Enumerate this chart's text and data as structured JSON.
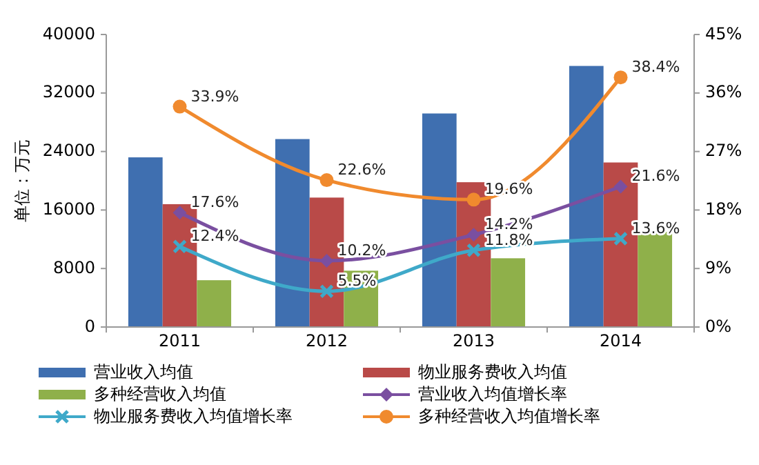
{
  "chart_data": {
    "type": "bar",
    "ylabel": "单位：万元",
    "categories": [
      "2011",
      "2012",
      "2013",
      "2014"
    ],
    "ylim": [
      0,
      40000
    ],
    "yticks": [
      0,
      8000,
      16000,
      24000,
      32000,
      40000
    ],
    "y2lim": [
      0,
      45
    ],
    "y2ticks": [
      {
        "value": 0,
        "label": "0%"
      },
      {
        "value": 9,
        "label": "9%"
      },
      {
        "value": 18,
        "label": "18%"
      },
      {
        "value": 27,
        "label": "27%"
      },
      {
        "value": 36,
        "label": "36%"
      },
      {
        "value": 45,
        "label": "45%"
      }
    ],
    "legend": "bottom",
    "grid": false,
    "series": [
      {
        "name": "营业收入均值",
        "color": "#3f6fb0",
        "values": [
          23200,
          25700,
          29200,
          35700
        ]
      },
      {
        "name": "物业服务费收入均值",
        "color": "#b94a48",
        "values": [
          16800,
          17700,
          19800,
          22500
        ]
      },
      {
        "name": "多种经营收入均值",
        "color": "#8fb04a",
        "values": [
          6400,
          7700,
          9400,
          13000
        ]
      },
      {
        "name": "营业收入均值增长率",
        "type": "line",
        "axis": "y2",
        "color": "#7a4fa0",
        "marker": "diamond",
        "values": [
          17.6,
          10.2,
          14.2,
          21.6
        ],
        "value_labels": [
          "17.6%",
          "10.2%",
          "14.2%",
          "21.6%"
        ]
      },
      {
        "name": "物业服务费收入均值增长率",
        "type": "line",
        "axis": "y2",
        "color": "#3fa9c9",
        "marker": "cross",
        "values": [
          12.4,
          5.5,
          11.8,
          13.6
        ],
        "value_labels": [
          "12.4%",
          "5.5%",
          "11.8%",
          "13.6%"
        ]
      },
      {
        "name": "多种经营收入均值增长率",
        "type": "line",
        "axis": "y2",
        "color": "#f08a2e",
        "marker": "circle",
        "values": [
          33.9,
          22.6,
          19.6,
          38.4
        ],
        "value_labels": [
          "33.9%",
          "22.6%",
          "19.6%",
          "38.4%"
        ]
      }
    ]
  }
}
